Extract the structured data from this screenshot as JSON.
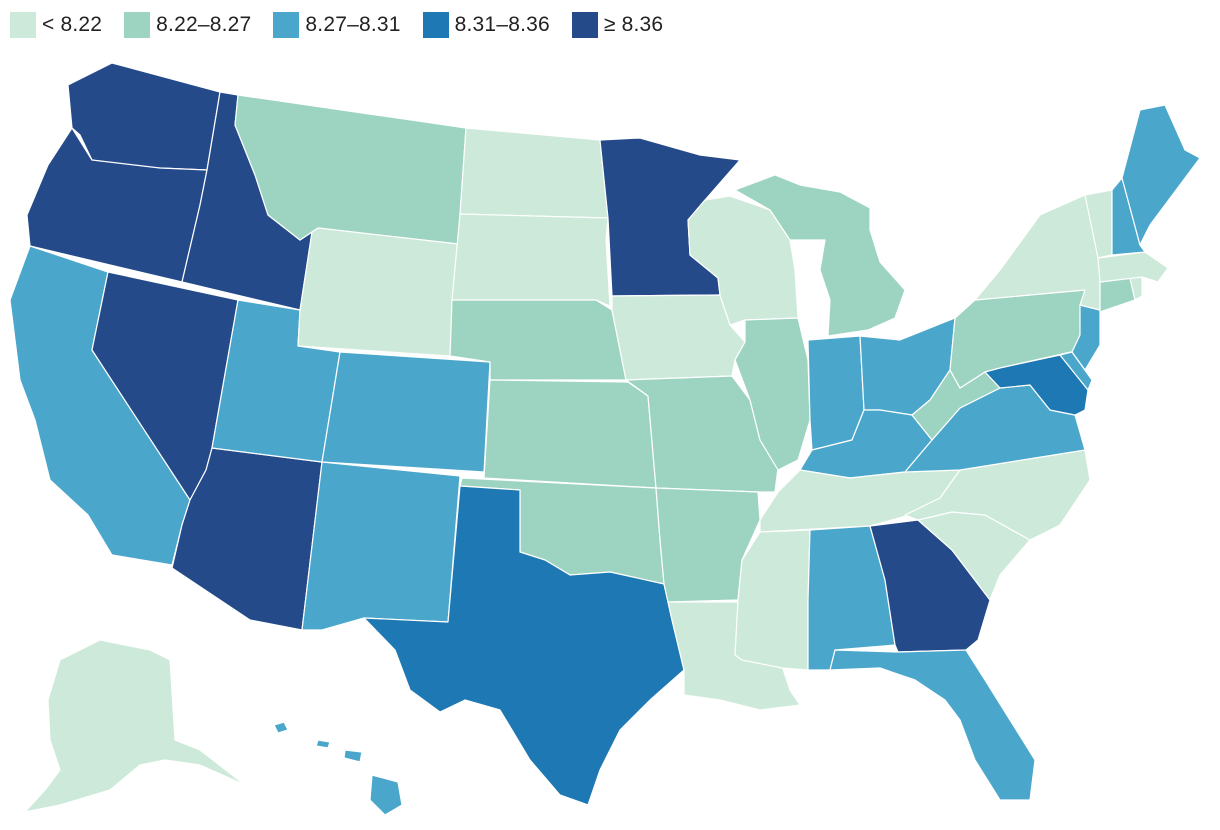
{
  "legend": [
    {
      "label": "< 8.22",
      "color": "#cde9d9"
    },
    {
      "label": "8.22–8.27",
      "color": "#9dd4c1"
    },
    {
      "label": "8.27–8.31",
      "color": "#4aa7cb"
    },
    {
      "label": "8.31–8.36",
      "color": "#1e78b4"
    },
    {
      "label": "≥ 8.36",
      "color": "#244a8a"
    }
  ],
  "states": {
    "WA": 4,
    "OR": 4,
    "ID": 4,
    "NV": 4,
    "AZ": 4,
    "MN": 4,
    "GA": 4,
    "TX": 3,
    "MD": 3,
    "CA": 2,
    "UT": 2,
    "CO": 2,
    "NM": 2,
    "IN": 2,
    "OH": 2,
    "KY": 2,
    "VA": 2,
    "AL": 2,
    "FL": 2,
    "NJ": 2,
    "NH": 2,
    "ME": 2,
    "HI": 2,
    "DE": 2,
    "MT": 1,
    "NE": 1,
    "KS": 1,
    "OK": 1,
    "MO": 1,
    "AR": 1,
    "IL": 1,
    "MI": 1,
    "PA": 1,
    "WV": 1,
    "CT": 1,
    "WY": 0,
    "ND": 0,
    "SD": 0,
    "IA": 0,
    "WI": 0,
    "LA": 0,
    "MS": 0,
    "TN": 0,
    "NC": 0,
    "SC": 0,
    "NY": 0,
    "VT": 0,
    "MA": 0,
    "RI": 0,
    "AK": 0
  }
}
